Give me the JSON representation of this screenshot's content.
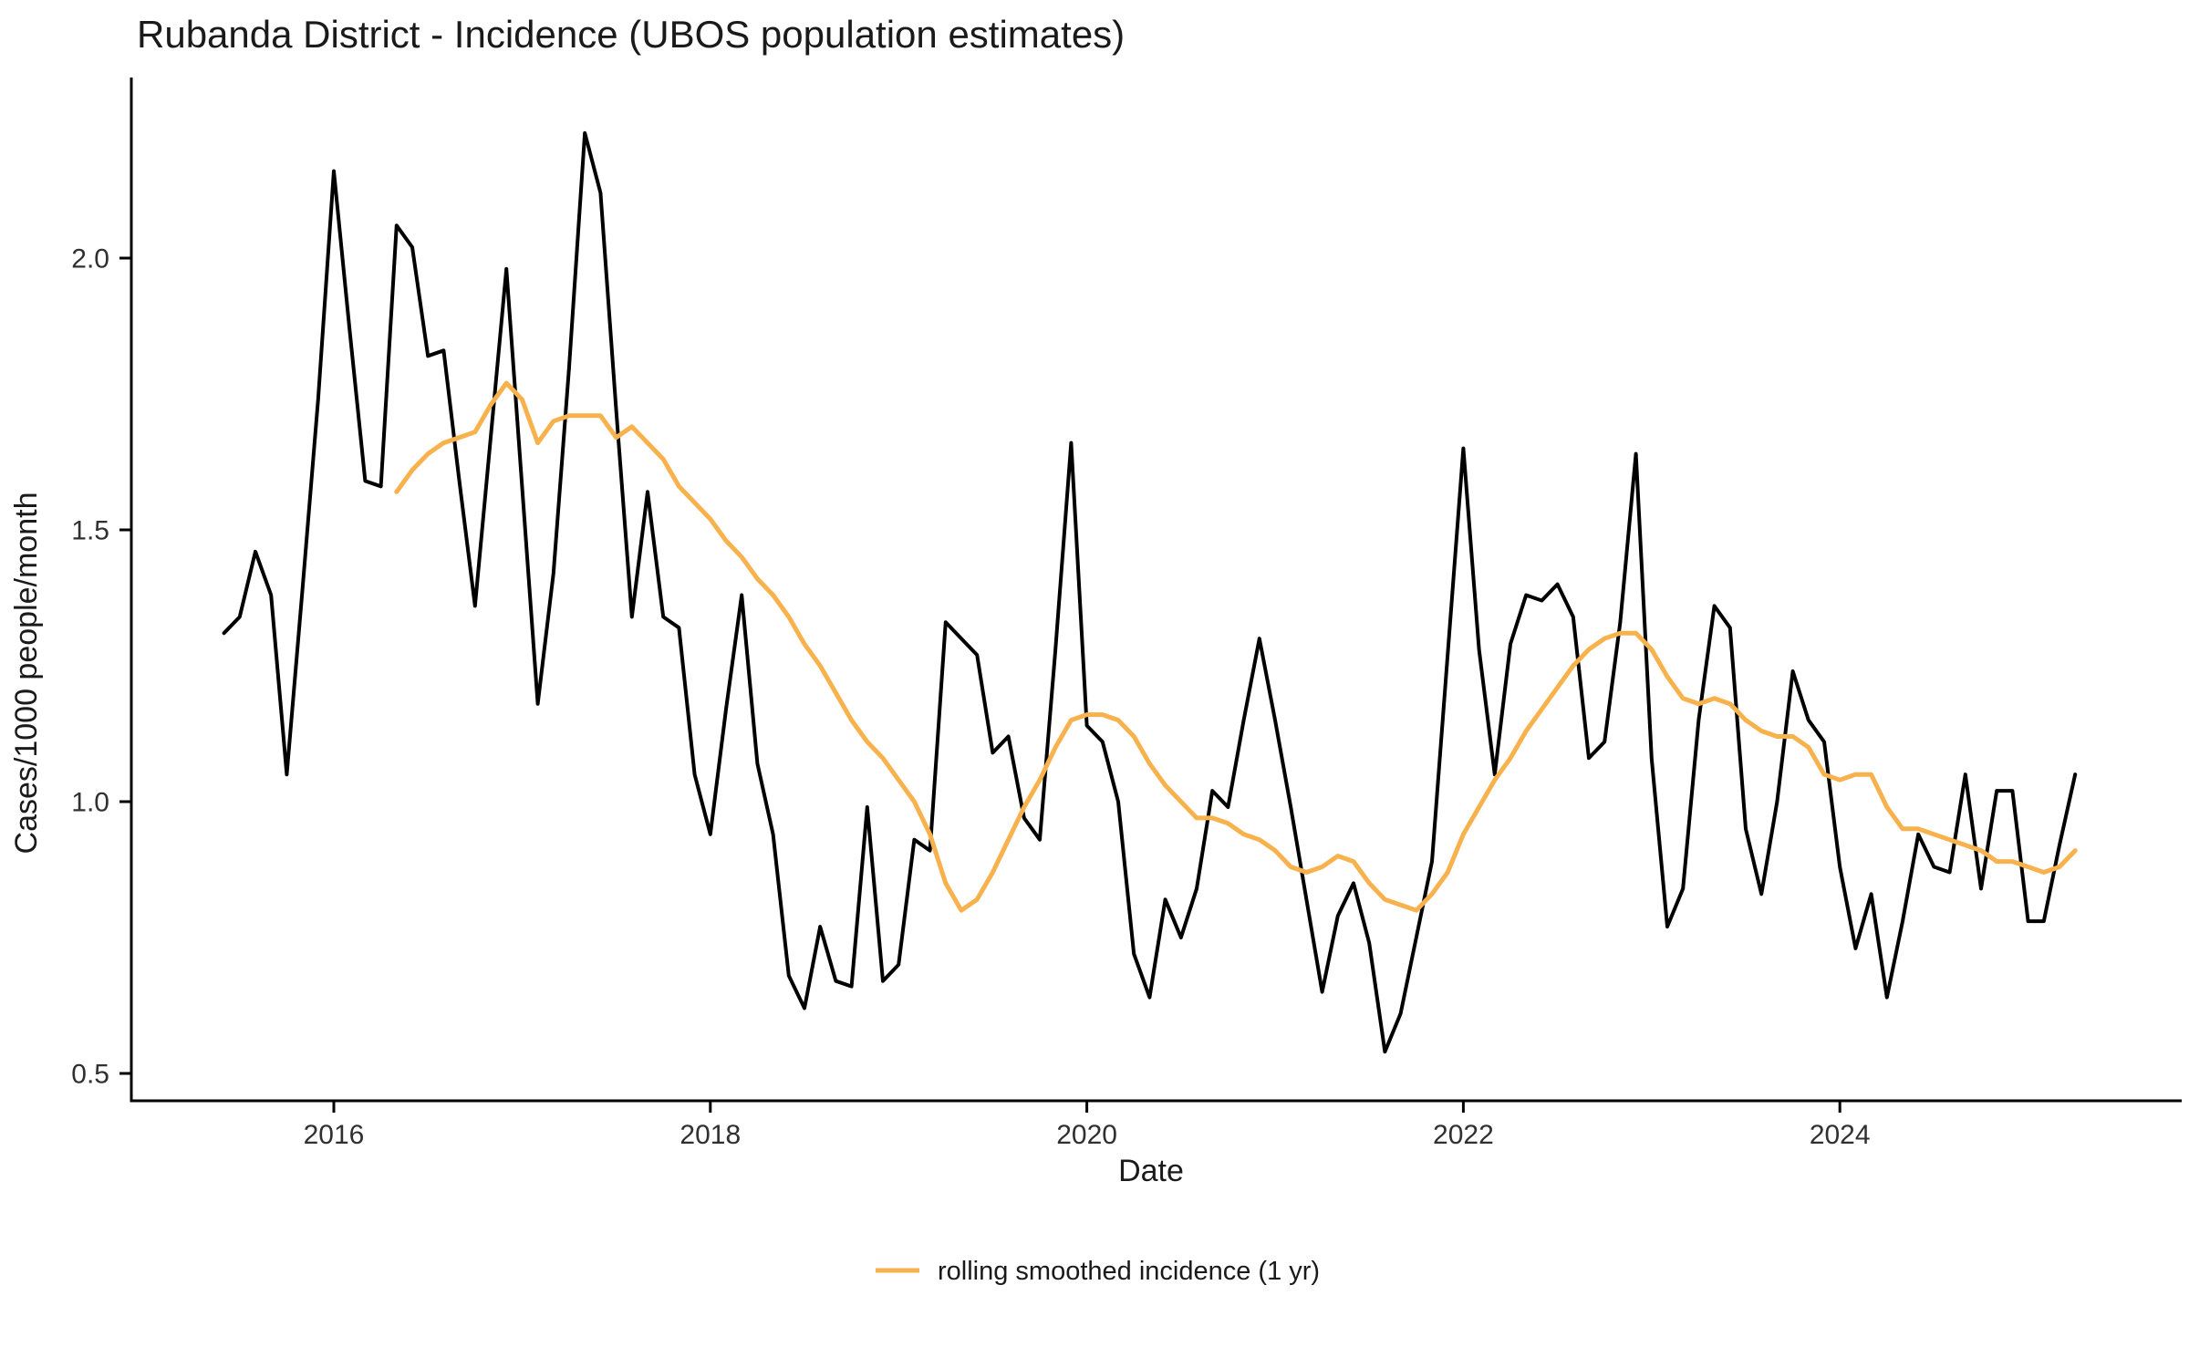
{
  "title": "Rubanda District - Incidence (UBOS population estimates)",
  "axes": {
    "x": {
      "label": "Date",
      "tick_years": [
        2016,
        2018,
        2020,
        2022,
        2024
      ],
      "tick_labels": [
        "2016",
        "2018",
        "2020",
        "2022",
        "2024"
      ]
    },
    "y": {
      "label": "Cases/1000 people/month",
      "tick_values": [
        0.5,
        1.0,
        1.5,
        2.0
      ],
      "tick_labels": [
        "0.5",
        "1.0",
        "1.5",
        "2.0"
      ],
      "range": [
        0.45,
        2.28
      ]
    }
  },
  "legend": {
    "items": [
      {
        "label": "rolling smoothed incidence (1 yr)",
        "color": "#F7B24E"
      }
    ]
  },
  "colors": {
    "raw_line": "#000000",
    "smoothed_line": "#F7B24E",
    "axis": "#000000",
    "background": "#ffffff"
  },
  "chart_data": {
    "type": "line",
    "title": "Rubanda District - Incidence (UBOS population estimates)",
    "xlabel": "Date",
    "ylabel": "Cases/1000 people/month",
    "ylim": [
      0.45,
      2.28
    ],
    "x_axis": "monthly dates",
    "grid": false,
    "legend_position": "bottom-center",
    "series": [
      {
        "name": "monthly incidence",
        "color": "#000000",
        "start": "2015-06",
        "values": [
          1.31,
          1.34,
          1.46,
          1.38,
          1.05,
          1.39,
          1.74,
          2.16,
          1.87,
          1.59,
          1.58,
          2.06,
          2.02,
          1.82,
          1.83,
          1.59,
          1.36,
          1.67,
          1.98,
          1.58,
          1.18,
          1.42,
          1.8,
          2.23,
          2.12,
          1.72,
          1.34,
          1.57,
          1.34,
          1.32,
          1.05,
          0.94,
          1.17,
          1.38,
          1.07,
          0.94,
          0.68,
          0.62,
          0.77,
          0.67,
          0.66,
          0.99,
          0.67,
          0.7,
          0.93,
          0.91,
          1.33,
          1.3,
          1.27,
          1.09,
          1.12,
          0.97,
          0.93,
          1.28,
          1.66,
          1.14,
          1.11,
          1.0,
          0.72,
          0.64,
          0.82,
          0.75,
          0.84,
          1.02,
          0.99,
          1.15,
          1.3,
          1.15,
          0.99,
          0.82,
          0.65,
          0.79,
          0.85,
          0.74,
          0.54,
          0.61,
          0.75,
          0.89,
          1.27,
          1.65,
          1.28,
          1.05,
          1.29,
          1.38,
          1.37,
          1.4,
          1.34,
          1.08,
          1.11,
          1.33,
          1.64,
          1.08,
          0.77,
          0.84,
          1.15,
          1.36,
          1.32,
          0.95,
          0.83,
          1.0,
          1.24,
          1.15,
          1.11,
          0.88,
          0.73,
          0.83,
          0.64,
          0.78,
          0.94,
          0.88,
          0.87,
          1.05,
          0.84,
          1.02,
          1.02,
          0.78,
          0.78,
          0.92,
          1.05
        ]
      },
      {
        "name": "rolling smoothed incidence (1 yr)",
        "color": "#F7B24E",
        "start": "2016-05",
        "values": [
          1.57,
          1.61,
          1.64,
          1.66,
          1.67,
          1.68,
          1.73,
          1.77,
          1.74,
          1.66,
          1.7,
          1.71,
          1.71,
          1.71,
          1.67,
          1.69,
          1.66,
          1.63,
          1.58,
          1.55,
          1.52,
          1.48,
          1.45,
          1.41,
          1.38,
          1.34,
          1.29,
          1.25,
          1.2,
          1.15,
          1.11,
          1.08,
          1.04,
          1.0,
          0.94,
          0.85,
          0.8,
          0.82,
          0.87,
          0.93,
          0.99,
          1.04,
          1.1,
          1.15,
          1.16,
          1.16,
          1.15,
          1.12,
          1.07,
          1.03,
          1.0,
          0.97,
          0.97,
          0.96,
          0.94,
          0.93,
          0.91,
          0.88,
          0.87,
          0.88,
          0.9,
          0.89,
          0.85,
          0.82,
          0.81,
          0.8,
          0.83,
          0.87,
          0.94,
          0.99,
          1.04,
          1.08,
          1.13,
          1.17,
          1.21,
          1.25,
          1.28,
          1.3,
          1.31,
          1.31,
          1.28,
          1.23,
          1.19,
          1.18,
          1.19,
          1.18,
          1.15,
          1.13,
          1.12,
          1.12,
          1.1,
          1.05,
          1.04,
          1.05,
          1.05,
          0.99,
          0.95,
          0.95,
          0.94,
          0.93,
          0.92,
          0.91,
          0.89,
          0.89,
          0.88,
          0.87,
          0.88,
          0.91
        ]
      }
    ]
  }
}
